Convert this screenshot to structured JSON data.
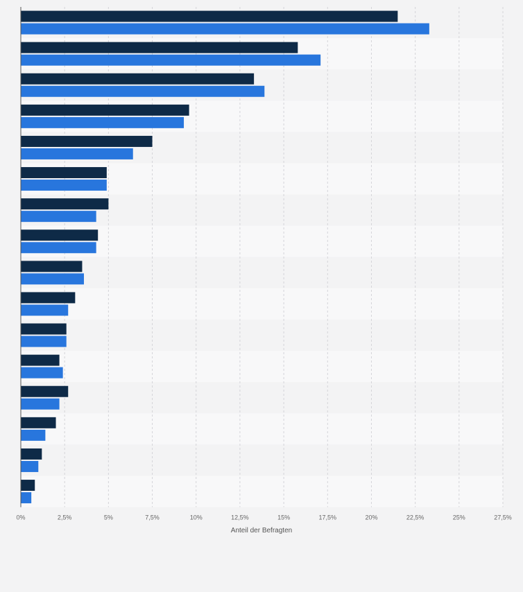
{
  "chart_data": {
    "type": "bar",
    "orientation": "horizontal",
    "xlabel": "Anteil der Befragten",
    "xlim": [
      0,
      27.5
    ],
    "ticks": [
      0,
      2.5,
      5,
      7.5,
      10,
      12.5,
      15,
      17.5,
      20,
      22.5,
      25,
      27.5
    ],
    "tick_labels": [
      "0%",
      "2,5%",
      "5%",
      "7,5%",
      "10%",
      "12,5%",
      "15%",
      "17,5%",
      "20%",
      "22,5%",
      "25%",
      "27,5%"
    ],
    "grid": true,
    "legend": "none",
    "colors": [
      "#0e2a47",
      "#2876dd"
    ],
    "stripe_colors": [
      "#f3f3f4",
      "#f8f8f9"
    ],
    "series": [
      {
        "values": [
          21.5,
          15.8,
          13.3,
          9.6,
          7.5,
          4.9,
          5.0,
          4.4,
          3.5,
          3.1,
          2.6,
          2.2,
          2.7,
          2.0,
          1.2,
          0.8
        ]
      },
      {
        "values": [
          23.3,
          17.1,
          13.9,
          9.3,
          6.4,
          4.9,
          4.3,
          4.3,
          3.6,
          2.7,
          2.6,
          2.4,
          2.2,
          1.4,
          1.0,
          0.6
        ]
      }
    ]
  }
}
